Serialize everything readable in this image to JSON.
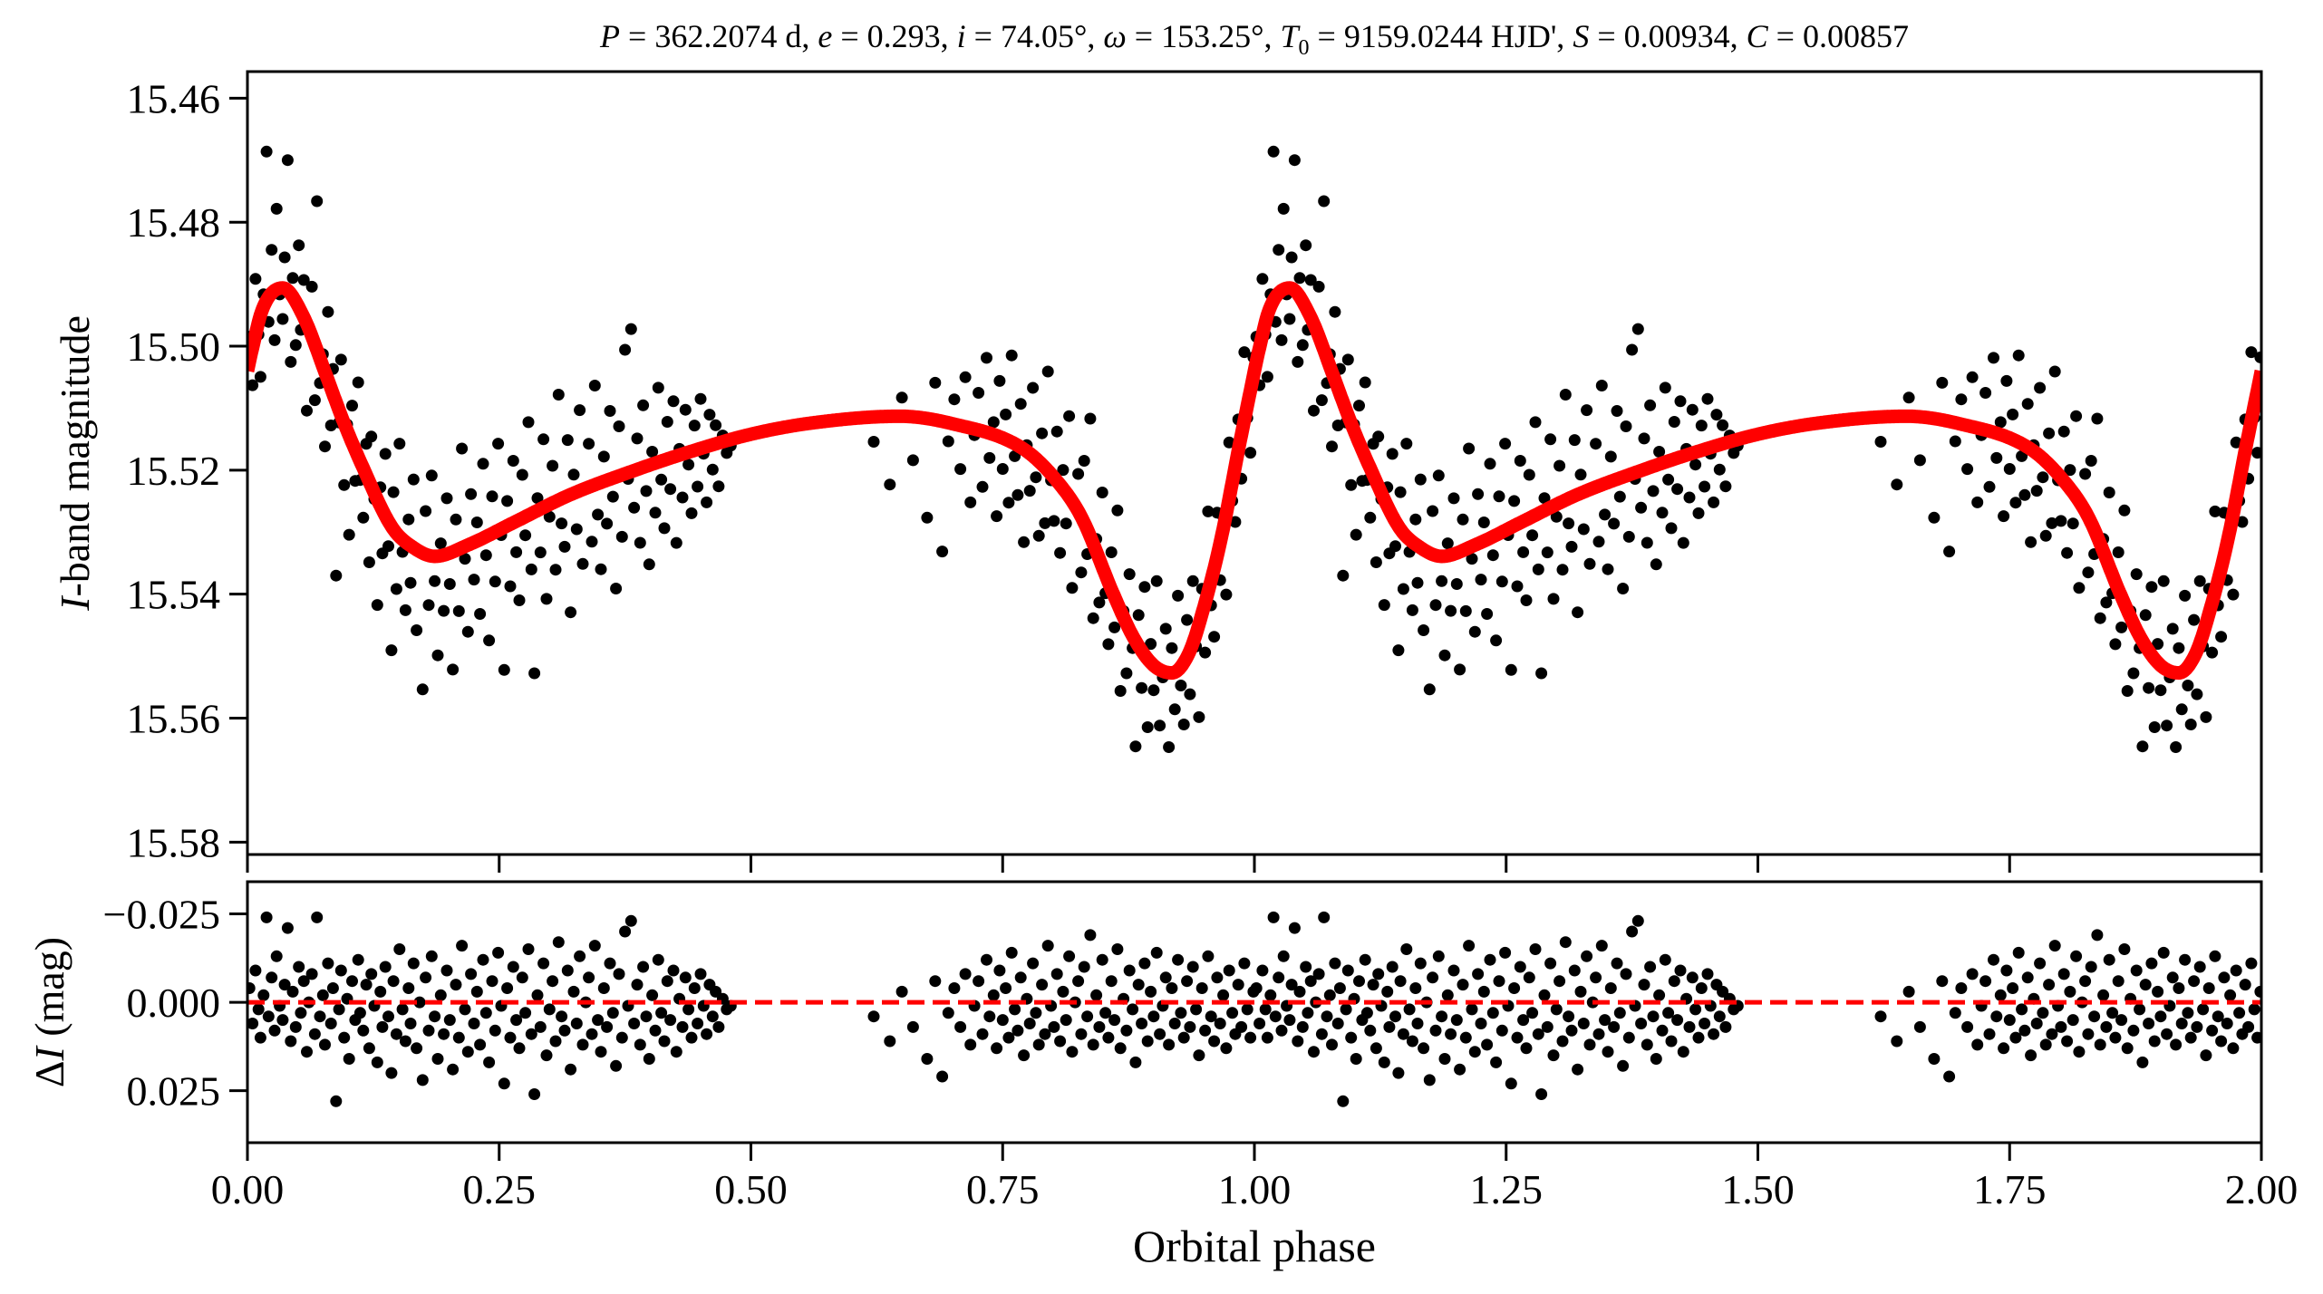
{
  "chart_data": [
    {
      "type": "scatter",
      "panel": "light-curve",
      "title": "P = 362.2074 d, e = 0.293, i = 74.05°, ω = 153.25°, T0 = 9159.0244 HJD', S = 0.00934, C = 0.00857",
      "title_parts": {
        "p_sym": "P",
        "p_val": " = 362.2074 d, ",
        "e_sym": "e",
        "e_val": " = 0.293, ",
        "i_sym": "i",
        "i_val": " = 74.05°, ",
        "w_sym": "ω",
        "w_val": " = 153.25°, ",
        "t_sym": "T",
        "t_sub": "0",
        "t_val": " = 9159.0244 HJD', ",
        "s_sym": "S",
        "s_val": " = 0.00934, ",
        "c_sym": "C",
        "c_val": " = 0.00857"
      },
      "ylabel_italic": "I",
      "ylabel_rest": "-band magnitude",
      "ylim": [
        15.582,
        15.4557
      ],
      "y_inverted": true,
      "yticks": [
        15.46,
        15.48,
        15.5,
        15.52,
        15.54,
        15.56,
        15.58
      ],
      "ytick_labels": [
        "15.46",
        "15.48",
        "15.50",
        "15.52",
        "15.54",
        "15.56",
        "15.58"
      ],
      "xlim": [
        0.0,
        2.0
      ],
      "xticks": [
        0.0,
        0.25,
        0.5,
        0.75,
        1.0,
        1.25,
        1.5,
        1.75,
        2.0
      ],
      "model_curve": {
        "name": "orbital model",
        "color": "#ff0000",
        "phase": [
          0.0,
          0.004,
          0.015,
          0.035,
          0.055,
          0.078,
          0.095,
          0.114,
          0.144,
          0.165,
          0.186,
          0.22,
          0.265,
          0.32,
          0.385,
          0.44,
          0.5,
          0.56,
          0.648,
          0.7,
          0.769,
          0.8,
          0.828,
          0.86,
          0.88,
          0.9,
          0.918,
          0.935,
          0.95,
          0.967,
          0.985,
          1.0
        ],
        "mag": [
          15.504,
          15.501,
          15.494,
          15.4906,
          15.495,
          15.5046,
          15.512,
          15.5193,
          15.5293,
          15.5325,
          15.5339,
          15.532,
          15.5284,
          15.524,
          15.52,
          15.517,
          15.5142,
          15.5124,
          15.5113,
          15.5125,
          15.5164,
          15.521,
          15.5275,
          15.54,
          15.547,
          15.5515,
          15.5527,
          15.5495,
          15.542,
          15.531,
          15.516,
          15.504
        ]
      },
      "observations_note_color": "#000000"
    },
    {
      "type": "scatter",
      "panel": "residuals",
      "ylabel_prefix": "Δ",
      "ylabel_italic": "I",
      "ylabel_rest": " (mag)",
      "ylim": [
        0.0397,
        -0.0341
      ],
      "y_inverted": true,
      "yticks": [
        -0.025,
        0.0,
        0.025
      ],
      "ytick_labels": [
        "−0.025",
        "0.000",
        "0.025"
      ],
      "xlabel": "Orbital phase",
      "xlim": [
        0.0,
        2.0
      ],
      "xticks": [
        0.0,
        0.25,
        0.5,
        0.75,
        1.0,
        1.25,
        1.5,
        1.75,
        2.0
      ],
      "xtick_labels": [
        "0.00",
        "0.25",
        "0.50",
        "0.75",
        "1.00",
        "1.25",
        "1.50",
        "1.75",
        "2.00"
      ],
      "zero_line": {
        "value": 0.0,
        "color": "#ff0000",
        "style": "dashed"
      },
      "residuals_one_cycle": [
        [
          0.002,
          -0.004
        ],
        [
          0.005,
          0.006
        ],
        [
          0.008,
          -0.009
        ],
        [
          0.011,
          0.002
        ],
        [
          0.013,
          0.01
        ],
        [
          0.016,
          -0.002
        ],
        [
          0.019,
          -0.024
        ],
        [
          0.021,
          0.004
        ],
        [
          0.024,
          -0.007
        ],
        [
          0.027,
          0.008
        ],
        [
          0.029,
          -0.013
        ],
        [
          0.032,
          0.001
        ],
        [
          0.035,
          0.005
        ],
        [
          0.037,
          -0.005
        ],
        [
          0.04,
          -0.021
        ],
        [
          0.043,
          0.011
        ],
        [
          0.045,
          -0.003
        ],
        [
          0.048,
          0.007
        ],
        [
          0.051,
          -0.01
        ],
        [
          0.053,
          0.003
        ],
        [
          0.056,
          -0.006
        ],
        [
          0.059,
          0.014
        ],
        [
          0.061,
          0.0
        ],
        [
          0.064,
          -0.008
        ],
        [
          0.067,
          0.009
        ],
        [
          0.069,
          -0.024
        ],
        [
          0.072,
          0.004
        ],
        [
          0.075,
          -0.002
        ],
        [
          0.077,
          0.012
        ],
        [
          0.08,
          -0.011
        ],
        [
          0.083,
          0.006
        ],
        [
          0.085,
          -0.004
        ],
        [
          0.088,
          0.028
        ],
        [
          0.091,
          0.002
        ],
        [
          0.093,
          -0.009
        ],
        [
          0.096,
          0.01
        ],
        [
          0.099,
          -0.001
        ],
        [
          0.101,
          0.016
        ],
        [
          0.104,
          -0.006
        ],
        [
          0.107,
          0.005
        ],
        [
          0.11,
          -0.012
        ],
        [
          0.112,
          0.003
        ],
        [
          0.115,
          0.008
        ],
        [
          0.118,
          -0.005
        ],
        [
          0.121,
          0.013
        ],
        [
          0.123,
          -0.008
        ],
        [
          0.126,
          0.001
        ],
        [
          0.129,
          0.017
        ],
        [
          0.132,
          -0.003
        ],
        [
          0.134,
          0.007
        ],
        [
          0.137,
          -0.01
        ],
        [
          0.14,
          0.004
        ],
        [
          0.143,
          0.02
        ],
        [
          0.145,
          -0.006
        ],
        [
          0.148,
          0.009
        ],
        [
          0.151,
          -0.015
        ],
        [
          0.154,
          0.002
        ],
        [
          0.157,
          0.011
        ],
        [
          0.16,
          -0.004
        ],
        [
          0.162,
          0.006
        ],
        [
          0.165,
          -0.011
        ],
        [
          0.168,
          0.013
        ],
        [
          0.171,
          0.0
        ],
        [
          0.174,
          0.022
        ],
        [
          0.177,
          -0.007
        ],
        [
          0.18,
          0.008
        ],
        [
          0.183,
          -0.013
        ],
        [
          0.186,
          0.004
        ],
        [
          0.189,
          0.016
        ],
        [
          0.192,
          -0.002
        ],
        [
          0.195,
          0.009
        ],
        [
          0.198,
          -0.009
        ],
        [
          0.201,
          0.005
        ],
        [
          0.204,
          0.019
        ],
        [
          0.207,
          -0.005
        ],
        [
          0.21,
          0.01
        ],
        [
          0.213,
          -0.016
        ],
        [
          0.216,
          0.002
        ],
        [
          0.219,
          0.014
        ],
        [
          0.222,
          -0.008
        ],
        [
          0.225,
          0.006
        ],
        [
          0.228,
          -0.003
        ],
        [
          0.231,
          0.012
        ],
        [
          0.234,
          -0.012
        ],
        [
          0.237,
          0.003
        ],
        [
          0.24,
          0.017
        ],
        [
          0.243,
          -0.006
        ],
        [
          0.246,
          0.008
        ],
        [
          0.249,
          -0.014
        ],
        [
          0.252,
          0.001
        ],
        [
          0.255,
          0.023
        ],
        [
          0.258,
          -0.004
        ],
        [
          0.261,
          0.01
        ],
        [
          0.264,
          -0.01
        ],
        [
          0.267,
          0.005
        ],
        [
          0.27,
          0.013
        ],
        [
          0.273,
          -0.007
        ],
        [
          0.276,
          0.003
        ],
        [
          0.279,
          -0.015
        ],
        [
          0.282,
          0.009
        ],
        [
          0.285,
          0.026
        ],
        [
          0.288,
          -0.002
        ],
        [
          0.291,
          0.007
        ],
        [
          0.294,
          -0.011
        ],
        [
          0.297,
          0.015
        ],
        [
          0.3,
          0.002
        ],
        [
          0.303,
          -0.006
        ],
        [
          0.306,
          0.011
        ],
        [
          0.309,
          -0.017
        ],
        [
          0.312,
          0.004
        ],
        [
          0.315,
          0.008
        ],
        [
          0.318,
          -0.009
        ],
        [
          0.321,
          0.019
        ],
        [
          0.324,
          -0.003
        ],
        [
          0.327,
          0.006
        ],
        [
          0.33,
          -0.013
        ],
        [
          0.333,
          0.012
        ],
        [
          0.336,
          0.0
        ],
        [
          0.339,
          -0.007
        ],
        [
          0.342,
          0.009
        ],
        [
          0.345,
          -0.016
        ],
        [
          0.348,
          0.005
        ],
        [
          0.351,
          0.014
        ],
        [
          0.354,
          -0.004
        ],
        [
          0.357,
          0.007
        ],
        [
          0.36,
          -0.011
        ],
        [
          0.363,
          0.003
        ],
        [
          0.366,
          0.018
        ],
        [
          0.369,
          -0.008
        ],
        [
          0.372,
          0.01
        ],
        [
          0.375,
          -0.02
        ],
        [
          0.378,
          0.001
        ],
        [
          0.381,
          -0.023
        ],
        [
          0.384,
          0.006
        ],
        [
          0.387,
          -0.005
        ],
        [
          0.39,
          0.012
        ],
        [
          0.393,
          -0.01
        ],
        [
          0.396,
          0.004
        ],
        [
          0.399,
          0.016
        ],
        [
          0.402,
          -0.002
        ],
        [
          0.405,
          0.008
        ],
        [
          0.408,
          -0.012
        ],
        [
          0.411,
          0.003
        ],
        [
          0.414,
          0.011
        ],
        [
          0.417,
          -0.006
        ],
        [
          0.42,
          0.005
        ],
        [
          0.423,
          -0.009
        ],
        [
          0.426,
          0.014
        ],
        [
          0.429,
          -0.001
        ],
        [
          0.432,
          0.007
        ],
        [
          0.435,
          -0.007
        ],
        [
          0.438,
          0.002
        ],
        [
          0.441,
          0.01
        ],
        [
          0.444,
          -0.004
        ],
        [
          0.447,
          0.006
        ],
        [
          0.45,
          -0.008
        ],
        [
          0.453,
          0.001
        ],
        [
          0.456,
          0.009
        ],
        [
          0.459,
          -0.005
        ],
        [
          0.462,
          0.004
        ],
        [
          0.465,
          -0.003
        ],
        [
          0.468,
          0.007
        ],
        [
          0.472,
          -0.001
        ],
        [
          0.476,
          0.002
        ],
        [
          0.48,
          0.001
        ],
        [
          0.622,
          0.004
        ],
        [
          0.638,
          0.011
        ],
        [
          0.65,
          -0.003
        ],
        [
          0.661,
          0.007
        ],
        [
          0.675,
          0.016
        ],
        [
          0.683,
          -0.006
        ],
        [
          0.69,
          0.021
        ],
        [
          0.696,
          0.003
        ],
        [
          0.702,
          -0.004
        ],
        [
          0.708,
          0.007
        ],
        [
          0.713,
          -0.008
        ],
        [
          0.718,
          0.012
        ],
        [
          0.722,
          0.001
        ],
        [
          0.726,
          -0.006
        ],
        [
          0.73,
          0.009
        ],
        [
          0.734,
          -0.012
        ],
        [
          0.737,
          0.004
        ],
        [
          0.741,
          -0.002
        ],
        [
          0.744,
          0.013
        ],
        [
          0.747,
          -0.009
        ],
        [
          0.75,
          0.005
        ],
        [
          0.753,
          -0.004
        ],
        [
          0.756,
          0.01
        ],
        [
          0.759,
          -0.014
        ],
        [
          0.762,
          0.002
        ],
        [
          0.765,
          0.008
        ],
        [
          0.768,
          -0.007
        ],
        [
          0.771,
          0.015
        ],
        [
          0.774,
          -0.001
        ],
        [
          0.777,
          0.006
        ],
        [
          0.78,
          -0.011
        ],
        [
          0.783,
          0.003
        ],
        [
          0.786,
          0.012
        ],
        [
          0.789,
          -0.005
        ],
        [
          0.792,
          0.009
        ],
        [
          0.795,
          -0.016
        ],
        [
          0.798,
          0.001
        ],
        [
          0.801,
          0.007
        ],
        [
          0.804,
          -0.008
        ],
        [
          0.807,
          0.011
        ],
        [
          0.81,
          -0.003
        ],
        [
          0.813,
          0.005
        ],
        [
          0.816,
          -0.013
        ],
        [
          0.819,
          0.014
        ],
        [
          0.822,
          0.0
        ],
        [
          0.825,
          -0.006
        ],
        [
          0.828,
          0.009
        ],
        [
          0.831,
          -0.01
        ],
        [
          0.834,
          0.004
        ],
        [
          0.837,
          -0.019
        ],
        [
          0.84,
          0.012
        ],
        [
          0.843,
          -0.002
        ],
        [
          0.846,
          0.007
        ],
        [
          0.849,
          -0.012
        ],
        [
          0.852,
          0.003
        ],
        [
          0.855,
          0.01
        ],
        [
          0.858,
          -0.006
        ],
        [
          0.861,
          0.005
        ],
        [
          0.864,
          -0.015
        ],
        [
          0.867,
          0.013
        ],
        [
          0.87,
          -0.001
        ],
        [
          0.873,
          0.008
        ],
        [
          0.876,
          -0.009
        ],
        [
          0.879,
          0.002
        ],
        [
          0.882,
          0.017
        ],
        [
          0.885,
          -0.005
        ],
        [
          0.888,
          0.006
        ],
        [
          0.891,
          -0.011
        ],
        [
          0.894,
          0.011
        ],
        [
          0.897,
          -0.003
        ],
        [
          0.9,
          0.004
        ],
        [
          0.903,
          -0.014
        ],
        [
          0.906,
          0.009
        ],
        [
          0.909,
          0.001
        ],
        [
          0.912,
          -0.007
        ],
        [
          0.915,
          0.012
        ],
        [
          0.918,
          -0.004
        ],
        [
          0.921,
          0.006
        ],
        [
          0.924,
          -0.012
        ],
        [
          0.927,
          0.003
        ],
        [
          0.93,
          0.01
        ],
        [
          0.933,
          -0.006
        ],
        [
          0.936,
          0.007
        ],
        [
          0.939,
          -0.01
        ],
        [
          0.942,
          0.002
        ],
        [
          0.945,
          0.015
        ],
        [
          0.948,
          -0.004
        ],
        [
          0.951,
          0.008
        ],
        [
          0.954,
          -0.013
        ],
        [
          0.957,
          0.004
        ],
        [
          0.96,
          0.011
        ],
        [
          0.963,
          -0.007
        ],
        [
          0.966,
          0.006
        ],
        [
          0.969,
          -0.002
        ],
        [
          0.972,
          0.013
        ],
        [
          0.975,
          -0.009
        ],
        [
          0.978,
          0.003
        ],
        [
          0.981,
          0.009
        ],
        [
          0.984,
          -0.005
        ],
        [
          0.987,
          0.007
        ],
        [
          0.99,
          -0.011
        ],
        [
          0.993,
          0.002
        ],
        [
          0.996,
          0.01
        ],
        [
          0.999,
          -0.003
        ]
      ],
      "observation_color": "#000000"
    }
  ]
}
